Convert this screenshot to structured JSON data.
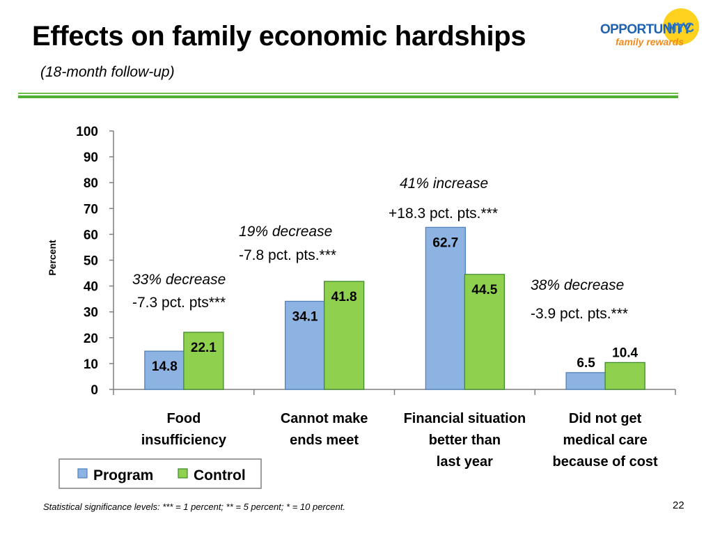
{
  "slide": {
    "title": "Effects on family economic hardships",
    "subtitle": "(18-month follow-up)",
    "footer": "Statistical significance levels:  *** = 1 percent; ** = 5 percent; * = 10 percent.",
    "page_number": "22"
  },
  "logo": {
    "word": "OPPORTUNITY",
    "city": "NYC",
    "tagline": "family rewards",
    "colors": {
      "word": "#1f62b0",
      "circle": "#ffd21f",
      "tagline": "#f08a1c"
    }
  },
  "chart_data": {
    "type": "bar",
    "categories": [
      [
        "Food",
        "insufficiency"
      ],
      [
        "Cannot make",
        "ends meet"
      ],
      [
        "Financial situation",
        "better than",
        "last year"
      ],
      [
        "Did not get",
        "medical care",
        "because of cost"
      ]
    ],
    "series": [
      {
        "name": "Program",
        "color": "#8db3e2",
        "values": [
          14.8,
          34.1,
          62.7,
          6.5
        ]
      },
      {
        "name": "Control",
        "color": "#8fd14f",
        "values": [
          22.1,
          41.8,
          44.5,
          10.4
        ]
      }
    ],
    "ylabel": "Percent",
    "xlabel": "",
    "ylim": [
      0,
      100
    ],
    "yticks": [
      0,
      10,
      20,
      30,
      40,
      50,
      60,
      70,
      80,
      90,
      100
    ],
    "grid": false,
    "legend_placement": "bottom-left",
    "annotations": [
      {
        "category": 0,
        "line1": "33% decrease",
        "line2": "-7.3 pct. pts***"
      },
      {
        "category": 1,
        "line1": "19% decrease",
        "line2": "-7.8 pct. pts.***"
      },
      {
        "category": 2,
        "line1": "41% increase",
        "line2": "+18.3 pct. pts.***"
      },
      {
        "category": 3,
        "line1": "38% decrease",
        "line2": "-3.9 pct. pts.***"
      }
    ]
  }
}
